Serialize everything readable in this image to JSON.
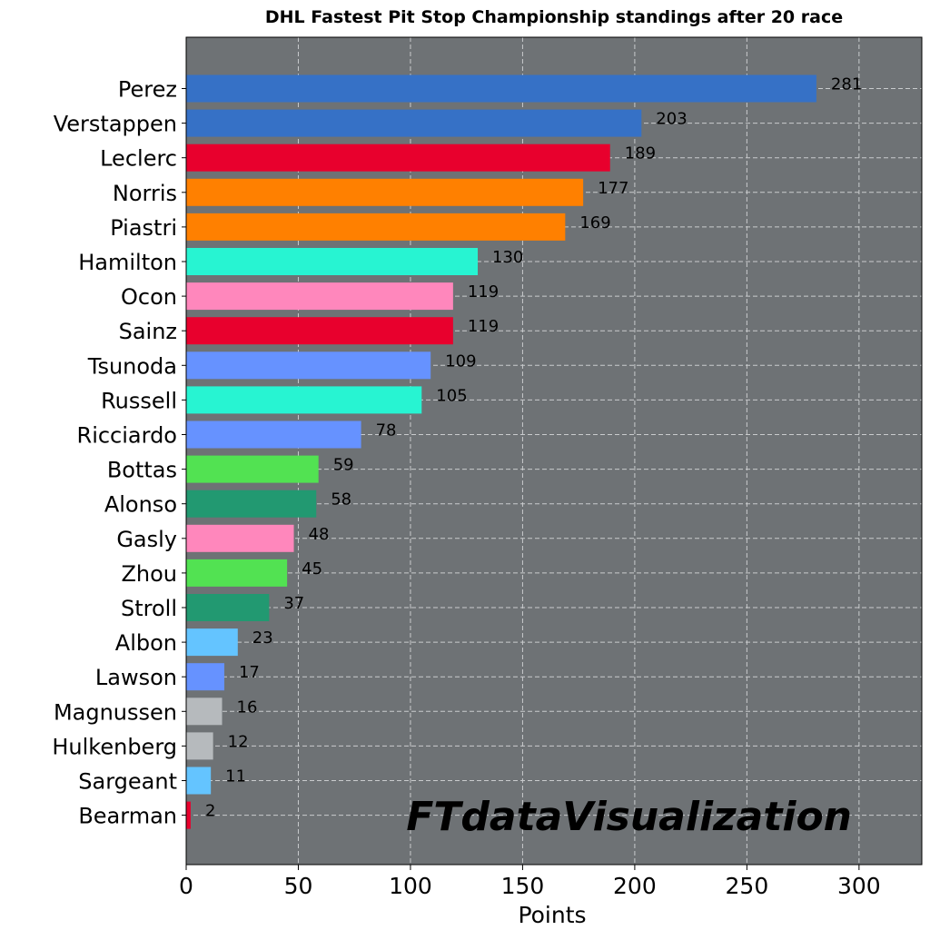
{
  "chart_data": {
    "type": "bar",
    "orientation": "horizontal",
    "title": "DHL Fastest Pit Stop Championship standings after 20 race",
    "xlabel": "Points",
    "ylabel": "",
    "xlim": [
      0,
      328
    ],
    "xticks": [
      0,
      50,
      100,
      150,
      200,
      250,
      300
    ],
    "grid": true,
    "background": "#6e7275",
    "watermark": "FTdataVisualization",
    "categories": [
      "Perez",
      "Verstappen",
      "Leclerc",
      "Norris",
      "Piastri",
      "Hamilton",
      "Ocon",
      "Sainz",
      "Tsunoda",
      "Russell",
      "Ricciardo",
      "Bottas",
      "Alonso",
      "Gasly",
      "Zhou",
      "Stroll",
      "Albon",
      "Lawson",
      "Magnussen",
      "Hulkenberg",
      "Sargeant",
      "Bearman"
    ],
    "values": [
      281,
      203,
      189,
      177,
      169,
      130,
      119,
      119,
      109,
      105,
      78,
      59,
      58,
      48,
      45,
      37,
      23,
      17,
      16,
      12,
      11,
      2
    ],
    "colors": [
      "#3671C6",
      "#3671C6",
      "#E8002D",
      "#FF8000",
      "#FF8000",
      "#27F4D2",
      "#FF87BC",
      "#E8002D",
      "#6692FF",
      "#27F4D2",
      "#6692FF",
      "#52E252",
      "#229971",
      "#FF87BC",
      "#52E252",
      "#229971",
      "#64C4FF",
      "#6692FF",
      "#B6BABD",
      "#B6BABD",
      "#64C4FF",
      "#E8002D"
    ]
  }
}
